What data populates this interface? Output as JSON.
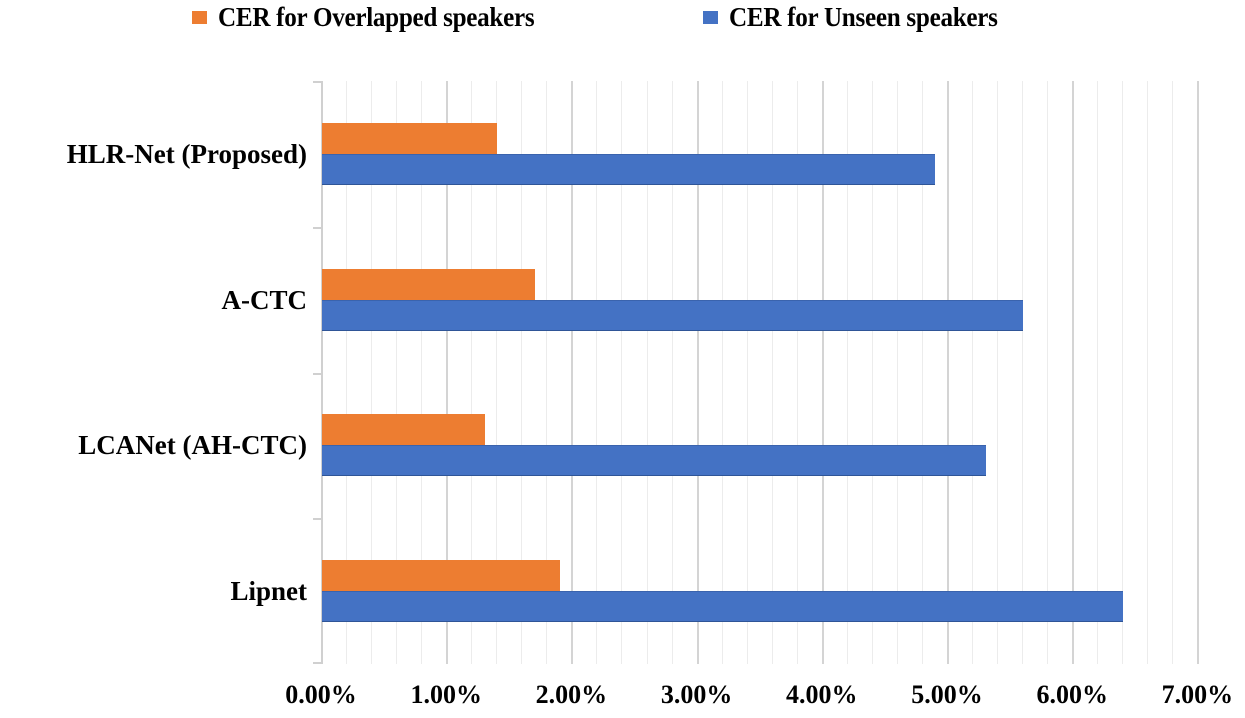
{
  "chart_data": {
    "type": "bar",
    "orientation": "horizontal",
    "title": "",
    "xlabel": "",
    "ylabel": "",
    "categories": [
      "HLR-Net (Proposed)",
      "A-CTC",
      "LCANet (AH-CTC)",
      "Lipnet"
    ],
    "series": [
      {
        "name": "CER for Overlapped speakers",
        "color": "#ed7d31",
        "values": [
          1.4,
          1.7,
          1.3,
          1.9
        ]
      },
      {
        "name": "CER for Unseen speakers",
        "color": "#4472c4",
        "values": [
          4.9,
          5.6,
          5.3,
          6.4
        ]
      }
    ],
    "value_unit": "%",
    "xlim": [
      0,
      7
    ],
    "x_ticks": [
      "0.00%",
      "1.00%",
      "2.00%",
      "3.00%",
      "4.00%",
      "5.00%",
      "6.00%",
      "7.00%"
    ],
    "grid": {
      "major_step": 1.0,
      "minor_step": 0.2,
      "orientation": "vertical"
    },
    "legend_position": "top"
  },
  "legend": {
    "items": [
      {
        "label": "CER for Overlapped speakers",
        "color": "#ed7d31"
      },
      {
        "label": "CER for Unseen speakers",
        "color": "#4472c4"
      }
    ]
  }
}
